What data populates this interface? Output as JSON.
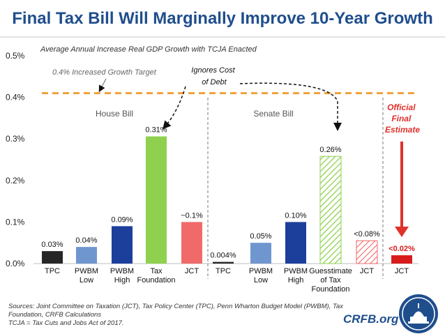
{
  "title": "Final Tax Bill Will Marginally Improve 10-Year Growth",
  "colors": {
    "title": "#1f4e8c",
    "target_line": "#f0a13a",
    "official_red": "#e0312a",
    "tpc": "#262626",
    "pwbm_low": "#6f96cf",
    "pwbm_high": "#1d3f9c",
    "tax_foundation": "#8fd14f",
    "jct_house": "#f06a6a",
    "guesstimate": "#8fd14f",
    "jct_senate": "#f06a6a",
    "jct_final": "#d81b1b"
  },
  "chart_data": {
    "type": "bar",
    "title": "Average Annual Increase Real GDP Growth with TCJA Enacted",
    "ylabel": "",
    "ylim": [
      0,
      0.5
    ],
    "y_ticks": [
      "0.0%",
      "0.1%",
      "0.2%",
      "0.3%",
      "0.4%",
      "0.5%"
    ],
    "y_tick_values": [
      0,
      0.1,
      0.2,
      0.3,
      0.4,
      0.5
    ],
    "grid": false,
    "groups": [
      {
        "name": "House Bill",
        "bars": [
          {
            "label": "TPC",
            "label_lines": [
              "TPC"
            ],
            "value": 0.03,
            "data_label": "0.03%",
            "style": "solid",
            "color_key": "tpc"
          },
          {
            "label": "PWBM Low",
            "label_lines": [
              "PWBM",
              "Low"
            ],
            "value": 0.04,
            "data_label": "0.04%",
            "style": "solid",
            "color_key": "pwbm_low"
          },
          {
            "label": "PWBM High",
            "label_lines": [
              "PWBM",
              "High"
            ],
            "value": 0.09,
            "data_label": "0.09%",
            "style": "solid",
            "color_key": "pwbm_high"
          },
          {
            "label": "Tax Foundation",
            "label_lines": [
              "Tax",
              "Foundation"
            ],
            "value": 0.306,
            "data_label": "0.31%",
            "style": "solid",
            "color_key": "tax_foundation"
          },
          {
            "label": "JCT",
            "label_lines": [
              "JCT"
            ],
            "value": 0.1,
            "data_label": "~0.1%",
            "style": "solid",
            "color_key": "jct_house"
          }
        ]
      },
      {
        "name": "Senate Bill",
        "bars": [
          {
            "label": "TPC",
            "label_lines": [
              "TPC"
            ],
            "value": 0.004,
            "data_label": "0.004%",
            "style": "solid",
            "color_key": "tpc"
          },
          {
            "label": "PWBM Low",
            "label_lines": [
              "PWBM",
              "Low"
            ],
            "value": 0.05,
            "data_label": "0.05%",
            "style": "solid",
            "color_key": "pwbm_low"
          },
          {
            "label": "PWBM High",
            "label_lines": [
              "PWBM",
              "High"
            ],
            "value": 0.1,
            "data_label": "0.10%",
            "style": "solid",
            "color_key": "pwbm_high"
          },
          {
            "label": "Guesstimate of Tax Foundation",
            "label_lines": [
              "Guesstimate",
              "of Tax",
              "Foundation"
            ],
            "value": 0.258,
            "data_label": "0.26%",
            "style": "hatched",
            "color_key": "guesstimate"
          },
          {
            "label": "JCT",
            "label_lines": [
              "JCT"
            ],
            "value": 0.055,
            "data_label": "<0.08%",
            "style": "hatched",
            "color_key": "jct_senate"
          }
        ]
      },
      {
        "name": "Official Final Estimate",
        "bars": [
          {
            "label": "JCT",
            "label_lines": [
              "JCT"
            ],
            "value": 0.02,
            "data_label": "<0.02%",
            "style": "solid",
            "color_key": "jct_final"
          }
        ]
      }
    ],
    "reference_line": {
      "value": 0.41,
      "label": "0.4% Increased Growth Target"
    },
    "annotations": {
      "ignores_cost": [
        "Ignores Cost",
        "of Debt"
      ],
      "official": [
        "Official",
        "Final",
        "Estimate"
      ]
    }
  },
  "footer": {
    "sources": "Sources: Joint Committee on Taxation (JCT), Tax Policy Center (TPC), Penn Wharton Budget Model (PWBM), Tax Foundation, CRFB Calculations",
    "note": "TCJA = Tax Cuts and Jobs Act of 2017."
  },
  "brand": "CRFB.org",
  "seal_icon": "capitol-seal-icon"
}
